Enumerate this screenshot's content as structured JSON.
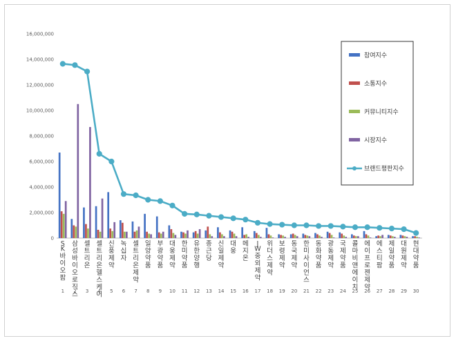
{
  "chart_data": {
    "type": "bar",
    "title": "",
    "xlabel": "",
    "ylabel": "",
    "ylim": [
      0,
      16000000
    ],
    "yticks": [
      "0",
      "2,000,000",
      "4,000,000",
      "6,000,000",
      "8,000,000",
      "10,000,000",
      "12,000,000",
      "14,000,000",
      "16,000,000"
    ],
    "legend_position": "right",
    "grid": false,
    "categories": [
      "SK바이오팜",
      "삼성바이오로직스",
      "셀트리온",
      "셀트리온헬스케어",
      "신풍제약",
      "녹십자",
      "셀트리온제약",
      "일양약품",
      "부광약품",
      "대웅제약",
      "한미약품",
      "유한양행",
      "종근당",
      "신일제약",
      "대웅",
      "메지온",
      "JW중외제약",
      "위더스제약",
      "보령제약",
      "동국제약",
      "한미사이언스",
      "동화약품",
      "광동제약",
      "국제약품",
      "콜마비앤에이치",
      "에이프로젠제약",
      "에스티팜",
      "제일약품",
      "대원제약",
      "현대약품"
    ],
    "ranks": [
      "1",
      "2",
      "3",
      "4",
      "5",
      "6",
      "7",
      "8",
      "9",
      "10",
      "11",
      "12",
      "13",
      "14",
      "15",
      "16",
      "17",
      "18",
      "19",
      "20",
      "21",
      "22",
      "23",
      "24",
      "25",
      "26",
      "27",
      "28",
      "29",
      "30"
    ],
    "series": [
      {
        "name": "참여지수",
        "kind": "bar",
        "color": "#4472c4",
        "values": [
          6700000,
          1500000,
          2400000,
          2500000,
          3600000,
          1400000,
          1300000,
          1900000,
          1700000,
          1000000,
          500000,
          450000,
          600000,
          850000,
          600000,
          850000,
          550000,
          800000,
          300000,
          300000,
          350000,
          400000,
          500000,
          450000,
          300000,
          550000,
          150000,
          250000,
          250000,
          150000
        ]
      },
      {
        "name": "소통지수",
        "kind": "bar",
        "color": "#c0504d",
        "values": [
          2100000,
          1000000,
          1100000,
          650000,
          750000,
          1200000,
          500000,
          500000,
          450000,
          700000,
          450000,
          550000,
          900000,
          450000,
          500000,
          250000,
          400000,
          300000,
          250000,
          350000,
          250000,
          300000,
          400000,
          350000,
          200000,
          300000,
          200000,
          200000,
          200000,
          150000
        ]
      },
      {
        "name": "커뮤니티지수",
        "kind": "bar",
        "color": "#9bbb59",
        "values": [
          1900000,
          900000,
          750000,
          500000,
          550000,
          500000,
          600000,
          350000,
          350000,
          400000,
          350000,
          350000,
          300000,
          300000,
          350000,
          300000,
          250000,
          200000,
          200000,
          250000,
          200000,
          200000,
          250000,
          200000,
          150000,
          200000,
          150000,
          150000,
          150000,
          100000
        ]
      },
      {
        "name": "시장지수",
        "kind": "bar",
        "color": "#8064a2",
        "values": [
          2900000,
          10500000,
          8700000,
          3100000,
          1250000,
          500000,
          900000,
          300000,
          500000,
          250000,
          600000,
          700000,
          150000,
          150000,
          150000,
          100000,
          100000,
          50000,
          100000,
          150000,
          150000,
          100000,
          50000,
          100000,
          150000,
          50000,
          250000,
          100000,
          100000,
          50000
        ]
      },
      {
        "name": "브랜드평판지수",
        "kind": "line",
        "color": "#4bacc6",
        "values": [
          13650000,
          13550000,
          13050000,
          6600000,
          6000000,
          3450000,
          3350000,
          3000000,
          2900000,
          2550000,
          1900000,
          1850000,
          1750000,
          1650000,
          1550000,
          1450000,
          1200000,
          1100000,
          1050000,
          1000000,
          1000000,
          950000,
          950000,
          900000,
          850000,
          850000,
          800000,
          750000,
          700000,
          400000
        ]
      }
    ]
  }
}
